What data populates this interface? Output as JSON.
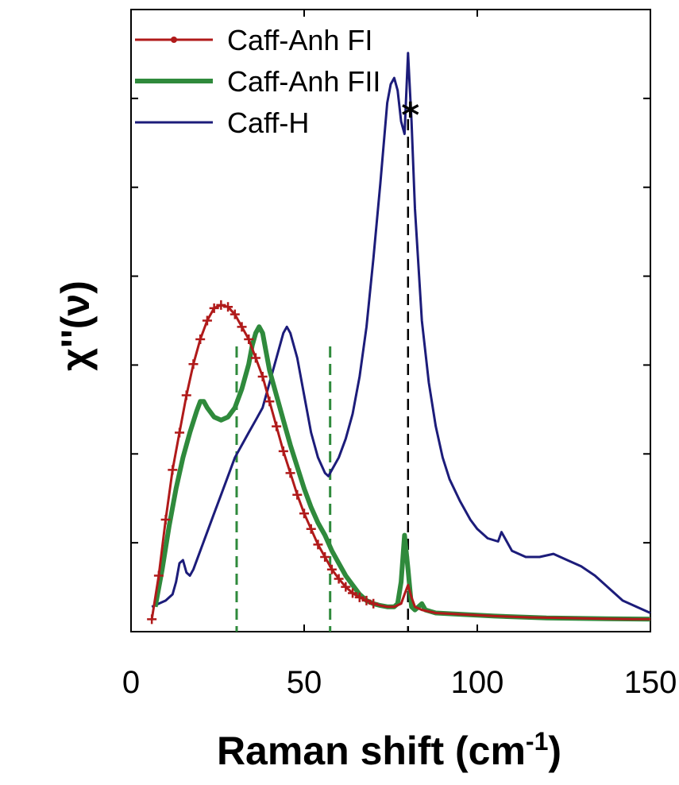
{
  "chart_data": {
    "type": "line",
    "xlabel": "Raman shift (cm",
    "xlabel_sup": "-1",
    "xlabel_end": ")",
    "ylabel": "χ''(ν)",
    "xlim": [
      0,
      150
    ],
    "ylim": [
      0,
      1.0
    ],
    "x_ticks": [
      "0",
      "50",
      "100",
      "150"
    ],
    "annotation": "*",
    "green_dashed_lines_x": [
      30.5,
      57.5
    ],
    "black_dashed_line_x": 80,
    "legend_position": "top-left",
    "series": [
      {
        "name": "Caff-Anh FI",
        "color": "#b01a1a",
        "style": "line-with-plus-markers",
        "points": [
          [
            6,
            0.02
          ],
          [
            8,
            0.09
          ],
          [
            10,
            0.18
          ],
          [
            12,
            0.26
          ],
          [
            14,
            0.32
          ],
          [
            16,
            0.38
          ],
          [
            18,
            0.43
          ],
          [
            20,
            0.47
          ],
          [
            22,
            0.5
          ],
          [
            24,
            0.52
          ],
          [
            26,
            0.525
          ],
          [
            28,
            0.522
          ],
          [
            30,
            0.51
          ],
          [
            32,
            0.49
          ],
          [
            34,
            0.47
          ],
          [
            36,
            0.44
          ],
          [
            38,
            0.41
          ],
          [
            40,
            0.37
          ],
          [
            42,
            0.33
          ],
          [
            44,
            0.29
          ],
          [
            46,
            0.255
          ],
          [
            48,
            0.22
          ],
          [
            50,
            0.19
          ],
          [
            52,
            0.165
          ],
          [
            54,
            0.14
          ],
          [
            56,
            0.12
          ],
          [
            58,
            0.1
          ],
          [
            60,
            0.085
          ],
          [
            62,
            0.072
          ],
          [
            64,
            0.062
          ],
          [
            66,
            0.055
          ],
          [
            68,
            0.05
          ],
          [
            70,
            0.045
          ],
          [
            72,
            0.042
          ],
          [
            74,
            0.04
          ],
          [
            76,
            0.04
          ],
          [
            78,
            0.045
          ],
          [
            79,
            0.06
          ],
          [
            80,
            0.075
          ],
          [
            81,
            0.055
          ],
          [
            82,
            0.04
          ],
          [
            84,
            0.035
          ],
          [
            88,
            0.03
          ],
          [
            95,
            0.028
          ],
          [
            105,
            0.025
          ],
          [
            115,
            0.023
          ],
          [
            125,
            0.022
          ],
          [
            135,
            0.021
          ],
          [
            145,
            0.02
          ],
          [
            150,
            0.02
          ]
        ]
      },
      {
        "name": "Caff-Anh FII",
        "color": "#2f8a3c",
        "style": "thick-line",
        "points": [
          [
            7,
            0.04
          ],
          [
            9,
            0.1
          ],
          [
            11,
            0.17
          ],
          [
            13,
            0.23
          ],
          [
            15,
            0.28
          ],
          [
            17,
            0.32
          ],
          [
            19,
            0.355
          ],
          [
            20,
            0.37
          ],
          [
            21,
            0.37
          ],
          [
            22,
            0.36
          ],
          [
            24,
            0.345
          ],
          [
            26,
            0.34
          ],
          [
            28,
            0.345
          ],
          [
            30,
            0.36
          ],
          [
            32,
            0.39
          ],
          [
            34,
            0.43
          ],
          [
            35,
            0.46
          ],
          [
            36,
            0.48
          ],
          [
            37,
            0.49
          ],
          [
            38,
            0.48
          ],
          [
            39,
            0.45
          ],
          [
            40,
            0.42
          ],
          [
            42,
            0.38
          ],
          [
            44,
            0.34
          ],
          [
            46,
            0.3
          ],
          [
            48,
            0.265
          ],
          [
            50,
            0.23
          ],
          [
            52,
            0.2
          ],
          [
            54,
            0.175
          ],
          [
            56,
            0.155
          ],
          [
            58,
            0.13
          ],
          [
            60,
            0.11
          ],
          [
            62,
            0.09
          ],
          [
            64,
            0.075
          ],
          [
            66,
            0.06
          ],
          [
            68,
            0.05
          ],
          [
            70,
            0.045
          ],
          [
            72,
            0.042
          ],
          [
            74,
            0.04
          ],
          [
            76,
            0.04
          ],
          [
            77,
            0.045
          ],
          [
            78,
            0.08
          ],
          [
            79,
            0.155
          ],
          [
            80,
            0.1
          ],
          [
            81,
            0.04
          ],
          [
            82,
            0.035
          ],
          [
            83,
            0.04
          ],
          [
            84,
            0.045
          ],
          [
            85,
            0.035
          ],
          [
            88,
            0.03
          ],
          [
            95,
            0.028
          ],
          [
            105,
            0.025
          ],
          [
            120,
            0.022
          ],
          [
            135,
            0.021
          ],
          [
            150,
            0.02
          ]
        ]
      },
      {
        "name": "Caff-H",
        "color": "#1c1c7a",
        "style": "thin-line",
        "points": [
          [
            6,
            0.04
          ],
          [
            8,
            0.045
          ],
          [
            10,
            0.05
          ],
          [
            12,
            0.06
          ],
          [
            13,
            0.08
          ],
          [
            14,
            0.11
          ],
          [
            15,
            0.115
          ],
          [
            16,
            0.095
          ],
          [
            17,
            0.09
          ],
          [
            18,
            0.1
          ],
          [
            20,
            0.13
          ],
          [
            22,
            0.16
          ],
          [
            24,
            0.19
          ],
          [
            26,
            0.22
          ],
          [
            28,
            0.25
          ],
          [
            30,
            0.28
          ],
          [
            32,
            0.3
          ],
          [
            34,
            0.32
          ],
          [
            36,
            0.34
          ],
          [
            38,
            0.36
          ],
          [
            40,
            0.4
          ],
          [
            42,
            0.44
          ],
          [
            44,
            0.48
          ],
          [
            45,
            0.49
          ],
          [
            46,
            0.48
          ],
          [
            48,
            0.44
          ],
          [
            50,
            0.38
          ],
          [
            52,
            0.32
          ],
          [
            54,
            0.28
          ],
          [
            56,
            0.255
          ],
          [
            57,
            0.25
          ],
          [
            58,
            0.26
          ],
          [
            60,
            0.28
          ],
          [
            62,
            0.31
          ],
          [
            64,
            0.35
          ],
          [
            66,
            0.41
          ],
          [
            68,
            0.49
          ],
          [
            70,
            0.6
          ],
          [
            72,
            0.72
          ],
          [
            74,
            0.85
          ],
          [
            75,
            0.88
          ],
          [
            76,
            0.89
          ],
          [
            77,
            0.87
          ],
          [
            78,
            0.82
          ],
          [
            79,
            0.8
          ],
          [
            80,
            0.93
          ],
          [
            81,
            0.82
          ],
          [
            82,
            0.68
          ],
          [
            84,
            0.5
          ],
          [
            86,
            0.4
          ],
          [
            88,
            0.33
          ],
          [
            90,
            0.28
          ],
          [
            92,
            0.245
          ],
          [
            95,
            0.21
          ],
          [
            98,
            0.18
          ],
          [
            100,
            0.165
          ],
          [
            103,
            0.15
          ],
          [
            106,
            0.145
          ],
          [
            107,
            0.16
          ],
          [
            108,
            0.15
          ],
          [
            110,
            0.13
          ],
          [
            114,
            0.12
          ],
          [
            118,
            0.12
          ],
          [
            122,
            0.125
          ],
          [
            126,
            0.115
          ],
          [
            130,
            0.105
          ],
          [
            134,
            0.09
          ],
          [
            138,
            0.07
          ],
          [
            142,
            0.05
          ],
          [
            146,
            0.04
          ],
          [
            150,
            0.03
          ]
        ]
      }
    ]
  }
}
